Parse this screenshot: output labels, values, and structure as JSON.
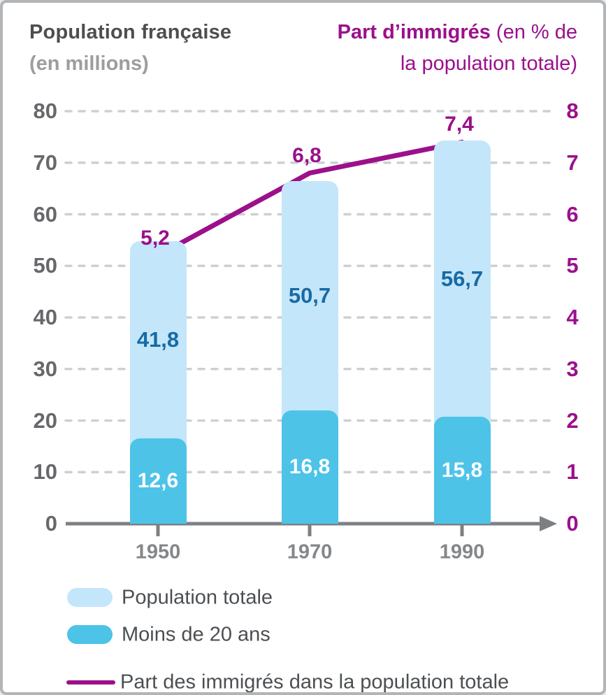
{
  "header": {
    "left": {
      "title": "Population française",
      "subtitle": "(en millions)"
    },
    "right": {
      "title_bold": "Part d’immigrés",
      "title_rest": " (en % de",
      "title_line2": "la population totale)"
    }
  },
  "chart_data": {
    "type": "bar",
    "subtype": "bar+line dual-axis",
    "categories": [
      "1950",
      "1970",
      "1990"
    ],
    "left_axis": {
      "label": "Population française (en millions)",
      "ticks": [
        0,
        10,
        20,
        30,
        40,
        50,
        60,
        70,
        80
      ],
      "range": [
        0,
        80
      ]
    },
    "right_axis": {
      "label": "Part d’immigrés (en % de la population totale)",
      "ticks": [
        0,
        1,
        2,
        3,
        4,
        5,
        6,
        7,
        8
      ],
      "range": [
        0,
        8
      ]
    },
    "grid": "dashed horizontal gridlines",
    "legend_position": "bottom-left",
    "series": [
      {
        "name": "Population totale",
        "type": "bar",
        "axis": "left",
        "color": "#c3e6fa",
        "values": [
          41.8,
          50.7,
          56.7
        ],
        "value_labels": [
          "41,8",
          "50,7",
          "56,7"
        ]
      },
      {
        "name": "Moins de 20 ans",
        "type": "bar",
        "axis": "left",
        "color": "#4dc3e8",
        "values": [
          12.6,
          16.8,
          15.8
        ],
        "value_labels": [
          "12,6",
          "16,8",
          "15,8"
        ]
      },
      {
        "name": "Part des immigrés dans la population totale",
        "type": "line",
        "axis": "right",
        "color": "#9b108b",
        "values": [
          5.2,
          6.8,
          7.4
        ],
        "value_labels": [
          "5,2",
          "6,8",
          "7,4"
        ]
      }
    ]
  },
  "legend": {
    "items": [
      {
        "label": "Population totale",
        "swatch": "pill-lightblue"
      },
      {
        "label": "Moins de 20 ans",
        "swatch": "pill-blue"
      },
      {
        "label": "Part des immigrés dans la population totale",
        "swatch": "line-magenta"
      }
    ]
  },
  "colors": {
    "bar_total": "#c3e6fa",
    "bar_under20": "#4dc3e8",
    "line_immigres": "#9b108b",
    "value_label_total": "#186aa3",
    "value_label_under20": "#ffffff",
    "axis_gray": "#7d8083",
    "grid_dash_gray": "#cdd0d2",
    "left_tick_gray": "#66686b",
    "year_gray": "#84878a",
    "frame_border": "#b2b5b8"
  }
}
